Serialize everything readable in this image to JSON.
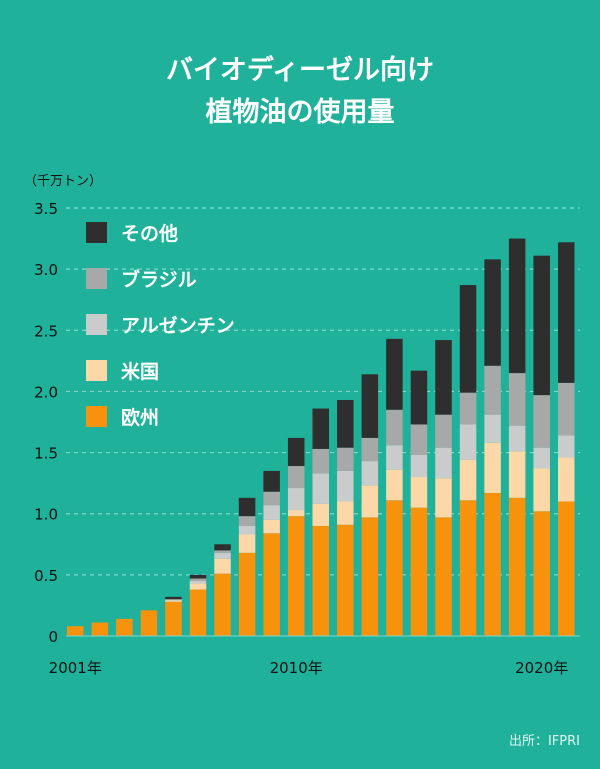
{
  "title_line1": "バイオディーゼル向け",
  "title_line2": "植物油の使用量",
  "source": "出所：IFPRI",
  "chart_data": {
    "type": "bar",
    "stacked": true,
    "unit_label": "（千万トン）",
    "ylim": [
      0,
      3.5
    ],
    "y_ticks": [
      "0",
      "0.5",
      "1.0",
      "1.5",
      "2.0",
      "2.5",
      "3.0",
      "3.5"
    ],
    "grid": true,
    "legend_position": "top-left",
    "x_tick_labels": [
      {
        "index": 0,
        "label": "2001年"
      },
      {
        "index": 9,
        "label": "2010年"
      },
      {
        "index": 19,
        "label": "2020年"
      }
    ],
    "categories": [
      "2001",
      "2002",
      "2003",
      "2004",
      "2005",
      "2006",
      "2007",
      "2008",
      "2009",
      "2010",
      "2011",
      "2012",
      "2013",
      "2014",
      "2015",
      "2016",
      "2017",
      "2018",
      "2019",
      "2020",
      "2021",
      "2022"
    ],
    "series": [
      {
        "name": "欧州",
        "color": "#f7920d",
        "values": [
          0.08,
          0.11,
          0.14,
          0.21,
          0.28,
          0.38,
          0.51,
          0.68,
          0.84,
          0.98,
          0.9,
          0.91,
          0.97,
          1.11,
          1.05,
          0.97,
          1.11,
          1.17,
          1.13,
          1.02,
          1.1,
          0
        ]
      },
      {
        "name": "米国",
        "color": "#fcd8a8",
        "values": [
          0,
          0,
          0,
          0,
          0.01,
          0.05,
          0.12,
          0.15,
          0.11,
          0.05,
          0.18,
          0.19,
          0.26,
          0.25,
          0.25,
          0.32,
          0.33,
          0.41,
          0.38,
          0.35,
          0.36,
          0
        ]
      },
      {
        "name": "アルゼンチン",
        "color": "#c9ccca",
        "values": [
          0,
          0,
          0,
          0,
          0.01,
          0.02,
          0.05,
          0.07,
          0.12,
          0.18,
          0.25,
          0.25,
          0.2,
          0.2,
          0.18,
          0.25,
          0.29,
          0.23,
          0.21,
          0.17,
          0.18,
          0
        ]
      },
      {
        "name": "ブラジル",
        "color": "#a7a9a8",
        "values": [
          0,
          0,
          0,
          0,
          0,
          0.02,
          0.02,
          0.08,
          0.11,
          0.18,
          0.2,
          0.19,
          0.19,
          0.29,
          0.25,
          0.27,
          0.26,
          0.4,
          0.43,
          0.43,
          0.43,
          0
        ]
      },
      {
        "name": "その他",
        "color": "#2d2e2d",
        "values": [
          0,
          0,
          0,
          0,
          0.02,
          0.03,
          0.05,
          0.15,
          0.17,
          0.23,
          0.33,
          0.39,
          0.52,
          0.58,
          0.44,
          0.61,
          0.88,
          0.87,
          1.1,
          1.14,
          1.15,
          0
        ]
      }
    ]
  },
  "colors": {
    "background": "#1fb19a",
    "grid": "#7fd8ca",
    "text": "#ffffff",
    "axis_text": "#111111",
    "source_text": "#dff5f1"
  }
}
